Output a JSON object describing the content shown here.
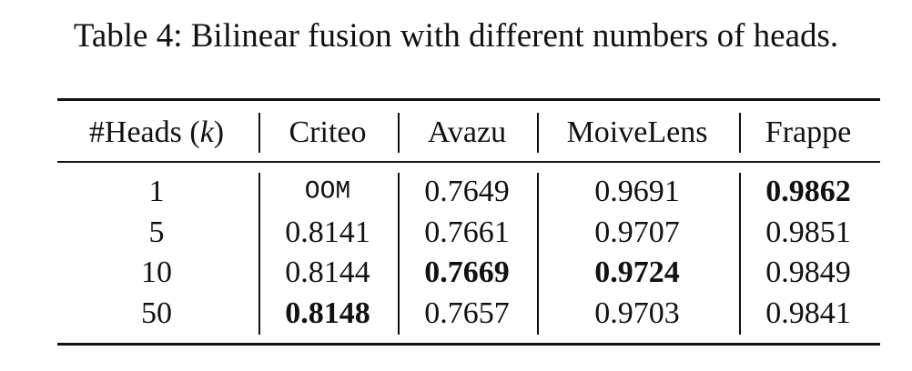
{
  "caption": "Table 4: Bilinear fusion with different numbers of heads.",
  "table": {
    "header": [
      [
        "#Heads (",
        "k",
        ")"
      ],
      "Criteo",
      "Avazu",
      "MoiveLens",
      "Frappe"
    ],
    "rows": [
      [
        "1",
        {
          "text": "OOM",
          "mono": true
        },
        "0.7649",
        "0.9691",
        {
          "text": "0.9862",
          "bold": true
        }
      ],
      [
        "5",
        "0.8141",
        "0.7661",
        "0.9707",
        "0.9851"
      ],
      [
        "10",
        "0.8144",
        {
          "text": "0.7669",
          "bold": true
        },
        {
          "text": "0.9724",
          "bold": true
        },
        "0.9849"
      ],
      [
        "50",
        {
          "text": "0.8148",
          "bold": true
        },
        "0.7657",
        "0.9703",
        "0.9841"
      ]
    ]
  }
}
